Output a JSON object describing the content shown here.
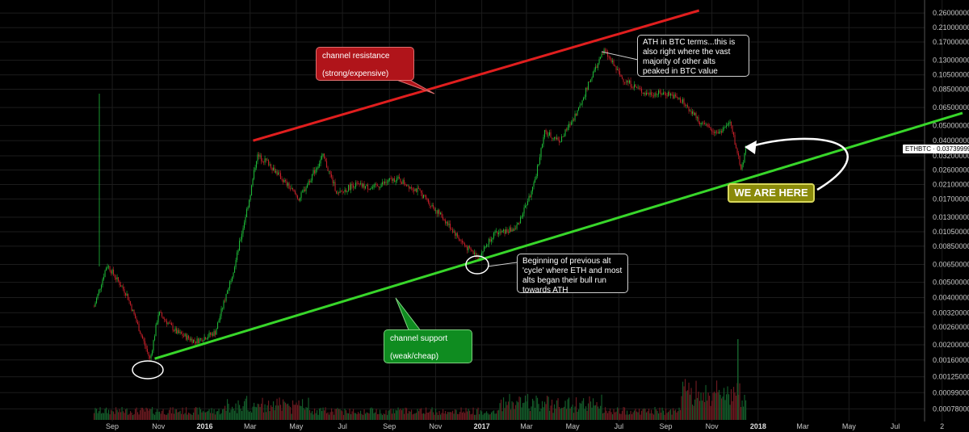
{
  "chart_data": {
    "type": "candlestick",
    "symbol": "ETHBTC",
    "last_price": "0.03739999",
    "price_tag": "ETHBTC · 0.03739999",
    "y_scale": "log",
    "ylim": [
      0.00068,
      0.27
    ],
    "y_ticks": [
      "0.26000000",
      "0.21000000",
      "0.17000000",
      "0.13000000",
      "0.10500000",
      "0.08500000",
      "0.06500000",
      "0.05000000",
      "0.04000000",
      "0.03200000",
      "0.02600000",
      "0.02100000",
      "0.01700000",
      "0.01300000",
      "0.01050000",
      "0.00850000",
      "0.00650000",
      "0.00500000",
      "0.00400000",
      "0.00320000",
      "0.00260000",
      "0.00200000",
      "0.00160000",
      "0.00125000",
      "0.00099000",
      "0.00078000"
    ],
    "x_ticks": [
      {
        "label": "Sep",
        "date": "2015-09"
      },
      {
        "label": "Nov",
        "date": "2015-11"
      },
      {
        "label": "2016",
        "date": "2016-01",
        "bold": true
      },
      {
        "label": "Mar",
        "date": "2016-03"
      },
      {
        "label": "May",
        "date": "2016-05"
      },
      {
        "label": "Jul",
        "date": "2016-07"
      },
      {
        "label": "Sep",
        "date": "2016-09"
      },
      {
        "label": "Nov",
        "date": "2016-11"
      },
      {
        "label": "2017",
        "date": "2017-01",
        "bold": true
      },
      {
        "label": "Mar",
        "date": "2017-03"
      },
      {
        "label": "May",
        "date": "2017-05"
      },
      {
        "label": "Jul",
        "date": "2017-07"
      },
      {
        "label": "Sep",
        "date": "2017-09"
      },
      {
        "label": "Nov",
        "date": "2017-11"
      },
      {
        "label": "2018",
        "date": "2018-01",
        "bold": true
      },
      {
        "label": "Mar",
        "date": "2018-03"
      },
      {
        "label": "May",
        "date": "2018-05"
      },
      {
        "label": "Jul",
        "date": "2018-07"
      },
      {
        "label": "2",
        "date": "2018-09"
      }
    ],
    "price_path": [
      {
        "date": "2015-08-08",
        "value": 0.0035
      },
      {
        "date": "2015-08-25",
        "value": 0.0065
      },
      {
        "date": "2015-09-20",
        "value": 0.0042
      },
      {
        "date": "2015-10-21",
        "value": 0.0016
      },
      {
        "date": "2015-11-01",
        "value": 0.0032
      },
      {
        "date": "2015-11-25",
        "value": 0.0024
      },
      {
        "date": "2015-12-20",
        "value": 0.0021
      },
      {
        "date": "2016-01-15",
        "value": 0.0024
      },
      {
        "date": "2016-02-10",
        "value": 0.0065
      },
      {
        "date": "2016-03-01",
        "value": 0.018
      },
      {
        "date": "2016-03-10",
        "value": 0.032
      },
      {
        "date": "2016-03-25",
        "value": 0.029
      },
      {
        "date": "2016-04-15",
        "value": 0.022
      },
      {
        "date": "2016-05-05",
        "value": 0.017
      },
      {
        "date": "2016-06-05",
        "value": 0.032
      },
      {
        "date": "2016-06-25",
        "value": 0.018
      },
      {
        "date": "2016-07-15",
        "value": 0.021
      },
      {
        "date": "2016-08-10",
        "value": 0.02
      },
      {
        "date": "2016-09-10",
        "value": 0.023
      },
      {
        "date": "2016-10-10",
        "value": 0.019
      },
      {
        "date": "2016-11-10",
        "value": 0.013
      },
      {
        "date": "2016-12-10",
        "value": 0.0085
      },
      {
        "date": "2016-12-28",
        "value": 0.0072
      },
      {
        "date": "2017-01-15",
        "value": 0.01
      },
      {
        "date": "2017-02-15",
        "value": 0.011
      },
      {
        "date": "2017-03-10",
        "value": 0.02
      },
      {
        "date": "2017-03-25",
        "value": 0.045
      },
      {
        "date": "2017-04-15",
        "value": 0.04
      },
      {
        "date": "2017-05-10",
        "value": 0.065
      },
      {
        "date": "2017-05-25",
        "value": 0.1
      },
      {
        "date": "2017-06-12",
        "value": 0.15
      },
      {
        "date": "2017-07-05",
        "value": 0.1
      },
      {
        "date": "2017-08-05",
        "value": 0.08
      },
      {
        "date": "2017-09-05",
        "value": 0.08
      },
      {
        "date": "2017-09-25",
        "value": 0.07
      },
      {
        "date": "2017-10-20",
        "value": 0.05
      },
      {
        "date": "2017-11-10",
        "value": 0.045
      },
      {
        "date": "2017-11-25",
        "value": 0.052
      },
      {
        "date": "2017-12-10",
        "value": 0.026
      },
      {
        "date": "2017-12-16",
        "value": 0.0374
      }
    ],
    "trendlines": [
      {
        "name": "channel resistance",
        "color": "#e01e1e",
        "from": {
          "date": "2016-03-05",
          "value": 0.04
        },
        "to": {
          "date": "2017-10-15",
          "value": 0.27
        }
      },
      {
        "name": "channel support",
        "color": "#38d62a",
        "from": {
          "date": "2015-10-27",
          "value": 0.00163
        },
        "to": {
          "date": "2018-09-28",
          "value": 0.06
        }
      }
    ],
    "volume_range": [
      0,
      1
    ]
  },
  "annotations": {
    "resistance": {
      "line1": "channel resistance",
      "line2": "(strong/expensive)"
    },
    "support": {
      "line1": "channel support",
      "line2": "(weak/cheap)"
    },
    "ath": {
      "text": "ATH in BTC terms...this is also right where the vast majority of other alts peaked in BTC value"
    },
    "cycle": {
      "text": "Beginning of previous alt 'cycle' where ETH and most alts began their bull run towards ATH"
    },
    "here": {
      "text": "WE ARE HERE"
    }
  },
  "colors": {
    "up": "#1fbf3a",
    "down": "#c8202a",
    "resistance": "#e01e1e",
    "support": "#38d62a",
    "volume_up": "#145a2a",
    "volume_down": "#6a1a20"
  }
}
